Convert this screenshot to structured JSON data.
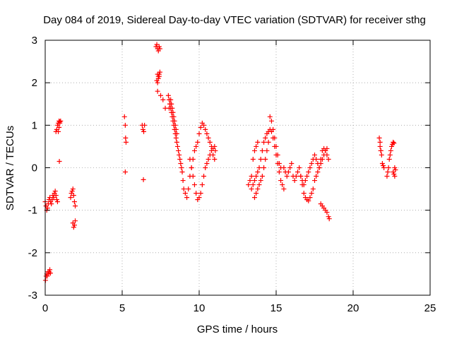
{
  "chart_data": {
    "type": "scatter",
    "title": "Day 084 of 2019, Sidereal Day-to-day VTEC variation (SDTVAR) for receiver sthg",
    "xlabel": "GPS time / hours",
    "ylabel": "SDTVAR / TECUs",
    "xlim": [
      0,
      25
    ],
    "ylim": [
      -3,
      3
    ],
    "x_ticks": [
      "0",
      "5",
      "10",
      "15",
      "20",
      "25"
    ],
    "y_ticks": [
      "-3",
      "-2",
      "-1",
      "0",
      "1",
      "2",
      "3"
    ],
    "grid": true,
    "marker": "+",
    "series": [
      {
        "name": "SDTVAR",
        "color": "#ff0000",
        "x": [
          0.0,
          0.05,
          0.1,
          0.15,
          0.2,
          0.25,
          0.3,
          0.35,
          0.4,
          0.45,
          0.5,
          0.55,
          0.6,
          0.65,
          0.7,
          0.75,
          0.8,
          0.85,
          0.9,
          0.95,
          1.0,
          0.02,
          0.06,
          0.1,
          0.14,
          0.18,
          0.22,
          0.26,
          0.3,
          0.34,
          0.7,
          0.75,
          0.8,
          0.85,
          0.9,
          0.95,
          0.92,
          1.65,
          1.7,
          1.75,
          1.8,
          1.85,
          1.9,
          1.95,
          1.8,
          1.85,
          1.9,
          1.95,
          5.15,
          5.2,
          5.22,
          5.25,
          5.2,
          6.3,
          6.35,
          6.4,
          6.45,
          6.38,
          7.2,
          7.25,
          7.3,
          7.35,
          7.4,
          7.45,
          7.3,
          7.35,
          7.4,
          7.25,
          7.3,
          7.35,
          7.4,
          7.45,
          7.3,
          7.5,
          7.65,
          7.8,
          8.0,
          8.05,
          8.1,
          8.15,
          8.2,
          8.25,
          8.3,
          8.35,
          8.4,
          8.45,
          8.5,
          8.55,
          8.6,
          8.65,
          8.7,
          8.75,
          8.8,
          8.85,
          8.9,
          8.95,
          9.0,
          8.05,
          8.1,
          8.15,
          8.2,
          8.25,
          8.3,
          8.35,
          8.4,
          8.45,
          8.5,
          8.55,
          9.1,
          9.2,
          9.3,
          9.4,
          9.5,
          9.6,
          9.7,
          9.8,
          9.9,
          10.0,
          10.1,
          10.2,
          10.3,
          10.4,
          10.5,
          10.6,
          10.7,
          10.8,
          10.9,
          11.0,
          11.05,
          9.4,
          9.5,
          9.6,
          9.7,
          9.8,
          9.9,
          10.0,
          10.1,
          10.2,
          10.3,
          10.4,
          10.5,
          10.6,
          10.7,
          10.8,
          10.9,
          11.0,
          13.2,
          13.3,
          13.4,
          13.5,
          13.6,
          13.7,
          13.8,
          13.4,
          13.5,
          13.6,
          13.7,
          13.8,
          13.9,
          14.0,
          14.1,
          14.2,
          14.3,
          14.4,
          14.5,
          14.6,
          14.7,
          14.8,
          14.9,
          15.0,
          15.1,
          15.2,
          15.3,
          15.4,
          15.5,
          13.6,
          13.7,
          13.8,
          13.9,
          14.0,
          14.1,
          14.2,
          14.3,
          14.4,
          14.5,
          14.6,
          14.7,
          14.8,
          14.9,
          15.0,
          15.1,
          15.2,
          15.3,
          15.5,
          15.6,
          15.7,
          15.8,
          15.9,
          16.0,
          16.1,
          16.2,
          16.3,
          16.4,
          16.5,
          16.6,
          16.7,
          16.8,
          16.9,
          17.0,
          17.1,
          17.2,
          17.3,
          17.4,
          17.5,
          17.6,
          17.7,
          17.8,
          17.9,
          18.0,
          18.1,
          18.2,
          18.3,
          18.4,
          16.6,
          16.7,
          16.8,
          16.9,
          17.0,
          17.1,
          17.2,
          17.3,
          17.4,
          17.5,
          17.6,
          17.7,
          17.8,
          17.9,
          18.0,
          18.1,
          18.2,
          18.3,
          17.9,
          18.0,
          18.1,
          18.2,
          18.3,
          18.4,
          18.45,
          21.7,
          21.75,
          21.8,
          21.85,
          21.9,
          21.95,
          22.0,
          21.75,
          21.8,
          22.2,
          22.25,
          22.3,
          22.35,
          22.4,
          22.45,
          22.5,
          22.55,
          22.6,
          22.65,
          22.7,
          22.75,
          22.6,
          22.65,
          22.7
        ],
        "y": [
          -0.8,
          -0.9,
          -1.0,
          -0.95,
          -0.85,
          -0.75,
          -0.7,
          -0.8,
          -0.85,
          -0.75,
          -0.65,
          -0.7,
          -0.6,
          -0.55,
          -0.65,
          -0.75,
          -0.8,
          0.85,
          0.95,
          1.05,
          1.1,
          -2.65,
          -2.55,
          -2.5,
          -2.55,
          -2.45,
          -2.5,
          -2.45,
          -2.4,
          -2.48,
          0.85,
          0.9,
          1.0,
          1.05,
          1.1,
          1.08,
          0.15,
          -0.7,
          -0.6,
          -0.55,
          -0.5,
          -0.65,
          -0.8,
          -0.9,
          -1.3,
          -1.4,
          -1.35,
          -1.25,
          1.2,
          1.0,
          0.7,
          0.6,
          -0.1,
          1.0,
          0.9,
          0.85,
          1.0,
          -0.28,
          2.85,
          2.9,
          2.8,
          2.75,
          2.85,
          2.8,
          2.2,
          2.1,
          2.15,
          2.05,
          2.0,
          2.15,
          2.2,
          2.25,
          1.8,
          1.7,
          1.6,
          1.4,
          1.7,
          1.6,
          1.5,
          1.4,
          1.3,
          1.2,
          1.1,
          1.0,
          0.9,
          0.8,
          0.7,
          0.6,
          0.5,
          0.4,
          0.3,
          0.2,
          0.1,
          0.0,
          -0.1,
          -0.3,
          -0.5,
          1.4,
          1.5,
          1.6,
          1.5,
          1.4,
          1.3,
          1.2,
          1.1,
          1.0,
          0.9,
          0.8,
          -0.6,
          -0.7,
          -0.5,
          -0.2,
          0.0,
          0.2,
          0.4,
          0.5,
          0.6,
          0.8,
          0.95,
          1.05,
          1.0,
          0.9,
          0.8,
          0.7,
          0.6,
          0.5,
          0.45,
          0.5,
          0.4,
          0.2,
          0.0,
          -0.2,
          -0.4,
          -0.6,
          -0.75,
          -0.7,
          -0.6,
          -0.4,
          -0.2,
          0.0,
          0.1,
          0.2,
          0.3,
          0.4,
          0.3,
          0.2,
          -0.4,
          -0.3,
          -0.2,
          0.2,
          0.4,
          0.5,
          0.6,
          -0.5,
          -0.4,
          -0.3,
          -0.2,
          -0.1,
          0.0,
          0.2,
          0.4,
          0.6,
          0.7,
          0.8,
          0.85,
          0.9,
          0.85,
          0.7,
          0.5,
          0.3,
          0.1,
          -0.1,
          -0.3,
          -0.4,
          -0.5,
          -0.7,
          -0.6,
          -0.5,
          -0.4,
          -0.3,
          -0.2,
          0.0,
          0.2,
          0.4,
          0.6,
          1.2,
          1.1,
          0.9,
          0.7,
          0.5,
          0.3,
          0.1,
          0.0,
          0.0,
          -0.1,
          -0.2,
          -0.1,
          0.0,
          0.1,
          -0.2,
          -0.3,
          -0.2,
          -0.1,
          0.0,
          -0.2,
          -0.3,
          -0.4,
          -0.3,
          -0.2,
          -0.1,
          0.0,
          0.1,
          0.2,
          0.3,
          0.2,
          0.1,
          0.0,
          0.2,
          0.4,
          0.45,
          0.4,
          0.3,
          0.2,
          -0.2,
          -0.4,
          -0.6,
          -0.7,
          -0.75,
          -0.78,
          -0.7,
          -0.6,
          -0.5,
          -0.3,
          -0.2,
          -0.1,
          0.0,
          0.1,
          0.2,
          0.3,
          0.4,
          0.45,
          -0.85,
          -0.9,
          -0.95,
          -1.0,
          -1.05,
          -1.15,
          -1.2,
          0.7,
          0.6,
          0.4,
          0.3,
          0.1,
          0.05,
          0.0,
          0.5,
          0.4,
          -0.2,
          -0.1,
          0.0,
          0.2,
          0.3,
          0.4,
          0.5,
          0.55,
          0.6,
          0.58,
          0.0,
          -0.05,
          -0.1,
          -0.15,
          -0.2
        ]
      }
    ]
  }
}
